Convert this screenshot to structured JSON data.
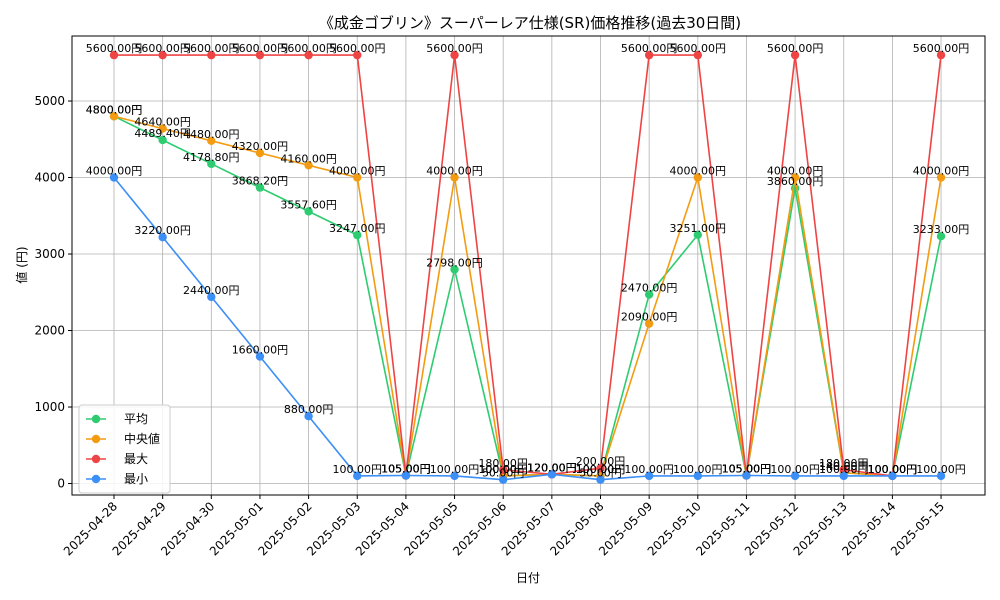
{
  "chart_data": {
    "type": "line",
    "title": "《成金ゴブリン》スーパーレア仕様(SR)価格推移(過去30日間)",
    "xlabel": "日付",
    "ylabel": "値 (円)",
    "ylim": [
      -150,
      5850
    ],
    "yticks": [
      0,
      1000,
      2000,
      3000,
      4000,
      5000
    ],
    "ytick_labels": [
      "0",
      "1000",
      "2000",
      "3000",
      "4000",
      "5000"
    ],
    "grid": true,
    "legend_position": "lower-left",
    "categories": [
      "2025-04-28",
      "2025-04-29",
      "2025-04-30",
      "2025-05-01",
      "2025-05-02",
      "2025-05-03",
      "2025-05-04",
      "2025-05-05",
      "2025-05-06",
      "2025-05-07",
      "2025-05-08",
      "2025-05-09",
      "2025-05-10",
      "2025-05-11",
      "2025-05-12",
      "2025-05-13",
      "2025-05-14",
      "2025-05-15"
    ],
    "series": [
      {
        "name": "平均",
        "color": "#2ecc71",
        "values": [
          4800,
          4489.4,
          4178.8,
          3868.2,
          3557.6,
          3247,
          105,
          2798,
          100,
          120,
          100,
          2470,
          3251,
          105,
          3860,
          140,
          100,
          3233
        ],
        "labels": [
          "4800.00円",
          "4489.40円",
          "4178.80円",
          "3868.20円",
          "3557.60円",
          "3247.00円",
          "105.00円",
          "2798.00円",
          "100.00円",
          "120.00円",
          "100.00円",
          "2470.00円",
          "3251.00円",
          "105.00円",
          "3860.00円",
          "140.00円",
          "100.00円",
          "3233.00円"
        ]
      },
      {
        "name": "中央値",
        "color": "#f39c12",
        "values": [
          4800,
          4640,
          4480,
          4320,
          4160,
          4000,
          105,
          4000,
          100,
          120,
          100,
          2090,
          4000,
          105,
          4000,
          140,
          100,
          4000
        ],
        "labels": [
          "4800.00円",
          "4640.00円",
          "4480.00円",
          "4320.00円",
          "4160.00円",
          "4000.00円",
          "105.00円",
          "4000.00円",
          "100.00円",
          "120.00円",
          "100.00円",
          "2090.00円",
          "4000.00円",
          "105.00円",
          "4000.00円",
          "140.00円",
          "100.00円",
          "4000.00円"
        ]
      },
      {
        "name": "最大",
        "color": "#ef4444",
        "values": [
          5600,
          5600,
          5600,
          5600,
          5600,
          5600,
          105,
          5600,
          180,
          120,
          200,
          5600,
          5600,
          105,
          5600,
          180,
          100,
          5600
        ],
        "labels": [
          "5600.00円",
          "5600.00円",
          "5600.00円",
          "5600.00円",
          "5600.00円",
          "5600.00円",
          "105.00円",
          "5600.00円",
          "180.00円",
          "120.00円",
          "200.00円",
          "5600.00円",
          "5600.00円",
          "105.00円",
          "5600.00円",
          "180.00円",
          "100.00円",
          "5600.00円"
        ]
      },
      {
        "name": "最小",
        "color": "#3b8ff6",
        "values": [
          4000,
          3220,
          2440,
          1660,
          880,
          100,
          105,
          100,
          50,
          120,
          50,
          100,
          100,
          105,
          100,
          100,
          100,
          100
        ],
        "labels": [
          "4000.00円",
          "3220.00円",
          "2440.00円",
          "1660.00円",
          "880.00円",
          "100.00円",
          "105.00円",
          "100.00円",
          "50.00円",
          "120.00円",
          "50.00円",
          "100.00円",
          "100.00円",
          "105.00円",
          "100.00円",
          "100.00円",
          "100.00円",
          "100.00円"
        ]
      }
    ]
  }
}
